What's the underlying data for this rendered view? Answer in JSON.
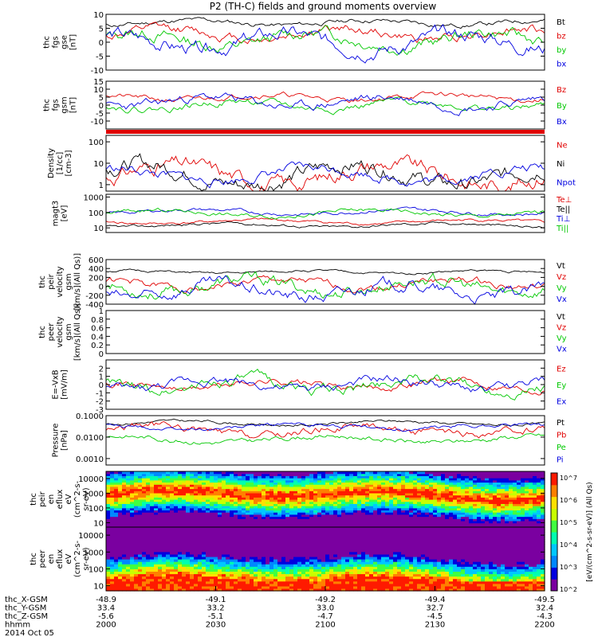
{
  "title": "P2 (TH-C) fields and ground moments overview",
  "colors": {
    "black": "#000000",
    "red": "#e00000",
    "green": "#00c800",
    "blue": "#0000e0",
    "cmap": [
      "#7a00a0",
      "#0000e0",
      "#0088ff",
      "#00c8ff",
      "#00ffb0",
      "#40ff40",
      "#c8ff00",
      "#ffe000",
      "#ff8000",
      "#ff1a00"
    ]
  },
  "chart_data": [
    {
      "type": "line",
      "name": "thc_fgs_gse",
      "ylabel": [
        "thc",
        "fgs",
        "gse",
        "[nT]"
      ],
      "ylim": [
        -10,
        10
      ],
      "yticks": [
        10,
        5,
        0,
        -5,
        -10
      ],
      "series": [
        {
          "name": "Bt",
          "color": "black",
          "base": 7,
          "amp": 1.5,
          "seed": 11
        },
        {
          "name": "bz",
          "color": "red",
          "base": 3,
          "amp": 3,
          "seed": 12
        },
        {
          "name": "by",
          "color": "green",
          "base": 1,
          "amp": 4,
          "seed": 13
        },
        {
          "name": "bx",
          "color": "blue",
          "base": 0,
          "amp": 4.5,
          "seed": 14
        }
      ]
    },
    {
      "type": "line",
      "name": "thc_fgs_gsm",
      "ylabel": [
        "thc",
        "fgs",
        "gsm",
        "[nT]"
      ],
      "ylim": [
        -15,
        15
      ],
      "yticks": [
        15,
        10,
        5,
        0,
        -5,
        -10
      ],
      "series": [
        {
          "name": "Bz",
          "color": "red",
          "base": 5,
          "amp": 3,
          "seed": 21
        },
        {
          "name": "By",
          "color": "green",
          "base": 0,
          "amp": 4,
          "seed": 22
        },
        {
          "name": "Bx",
          "color": "blue",
          "base": 2,
          "amp": 5,
          "seed": 23
        }
      ]
    },
    {
      "type": "line",
      "name": "density",
      "ylabel": [
        "Density",
        "[1/cc]",
        "[cm-3]"
      ],
      "ylim": [
        0.5,
        200
      ],
      "log": true,
      "yticks": [
        100,
        10,
        1
      ],
      "series": [
        {
          "name": "Ne",
          "color": "red",
          "base": 3,
          "amp": 0.8,
          "seed": 31
        },
        {
          "name": "Ni",
          "color": "black",
          "base": 3,
          "amp": 0.8,
          "seed": 32
        },
        {
          "name": "Npot",
          "color": "blue",
          "base": 3,
          "amp": 0.5,
          "seed": 33
        }
      ]
    },
    {
      "type": "line",
      "name": "temperature",
      "ylabel": [
        "magt3",
        "[eV]"
      ],
      "ylim": [
        5,
        1500
      ],
      "log": true,
      "yticks": [
        1000,
        100,
        10
      ],
      "series": [
        {
          "name": "Te⊥",
          "color": "red",
          "base": 25,
          "amp": 0.2,
          "seed": 41
        },
        {
          "name": "Te||",
          "color": "black",
          "base": 15,
          "amp": 0.2,
          "seed": 42
        },
        {
          "name": "Ti⊥",
          "color": "blue",
          "base": 110,
          "amp": 0.25,
          "seed": 43
        },
        {
          "name": "Ti||",
          "color": "green",
          "base": 90,
          "amp": 0.3,
          "seed": 44
        }
      ]
    },
    {
      "type": "line",
      "name": "thc_peir_velocity",
      "ylabel": [
        "thc",
        "peir",
        "velocity",
        "gsm",
        "[km/s](All Qs)]"
      ],
      "ylim": [
        -400,
        600
      ],
      "yticks": [
        600,
        400,
        200,
        0,
        -200,
        -400
      ],
      "series": [
        {
          "name": "Vt",
          "color": "black",
          "base": 320,
          "amp": 50,
          "seed": 51
        },
        {
          "name": "Vz",
          "color": "red",
          "base": 50,
          "amp": 150,
          "seed": 52
        },
        {
          "name": "Vy",
          "color": "green",
          "base": 0,
          "amp": 250,
          "seed": 53
        },
        {
          "name": "Vx",
          "color": "blue",
          "base": -100,
          "amp": 250,
          "seed": 54
        }
      ]
    },
    {
      "type": "line",
      "name": "thc_peer_velocity",
      "ylabel": [
        "thc",
        "peer",
        "velocity",
        "gsm",
        "[km/s](All Qs)]"
      ],
      "ylim": [
        0,
        1.0
      ],
      "yticks": [
        1.0,
        0.8,
        0.6,
        0.4,
        0.2,
        0.0
      ],
      "series": [
        {
          "name": "Vt",
          "color": "black",
          "empty": true
        },
        {
          "name": "Vz",
          "color": "red",
          "empty": true
        },
        {
          "name": "Vy",
          "color": "green",
          "empty": true
        },
        {
          "name": "Vx",
          "color": "blue",
          "empty": true
        }
      ]
    },
    {
      "type": "line",
      "name": "e_field",
      "ylabel": [
        "E=-VxB",
        "[mV/m]"
      ],
      "ylim": [
        -3,
        3
      ],
      "yticks": [
        2,
        1,
        0,
        -1,
        -2,
        -3
      ],
      "series": [
        {
          "name": "Ez",
          "color": "red",
          "base": 0,
          "amp": 0.8,
          "seed": 71
        },
        {
          "name": "Ey",
          "color": "green",
          "base": 0,
          "amp": 1.2,
          "seed": 72
        },
        {
          "name": "Ex",
          "color": "blue",
          "base": 0,
          "amp": 1.0,
          "seed": 73
        }
      ]
    },
    {
      "type": "line",
      "name": "pressure",
      "ylabel": [
        "Pressure",
        "[nPa]"
      ],
      "ylim": [
        0.0005,
        0.1
      ],
      "log": true,
      "yticks": [
        0.1,
        0.01,
        0.001
      ],
      "ytick_labels": [
        "0.1000",
        "0.0100",
        "0.0010"
      ],
      "series": [
        {
          "name": "Pt",
          "color": "black",
          "base": 0.045,
          "amp": 0.15,
          "seed": 81
        },
        {
          "name": "Pb",
          "color": "red",
          "base": 0.02,
          "amp": 0.4,
          "seed": 82
        },
        {
          "name": "Pe",
          "color": "green",
          "base": 0.008,
          "amp": 0.25,
          "seed": 83
        },
        {
          "name": "Pi",
          "color": "blue",
          "base": 0.03,
          "amp": 0.2,
          "seed": 84
        }
      ]
    },
    {
      "type": "heatmap",
      "name": "thc_peir_en_eflux",
      "ylabel": [
        "thc",
        "peir",
        "en",
        "eflux",
        "eV",
        "(cm^2-s-",
        "sr-eV)"
      ],
      "ylim": [
        5,
        30000
      ],
      "log": true,
      "yticks": [
        10000,
        1000,
        100,
        10
      ],
      "ytick_labels": [
        "10000",
        "1000",
        "100",
        "10"
      ],
      "peak_energy": 800,
      "seed": 91
    },
    {
      "type": "heatmap",
      "name": "thc_peer_en_eflux",
      "ylabel": [
        "thc",
        "peer",
        "en",
        "eflux",
        "eV",
        "(cm^2-s-",
        "sr-eV)"
      ],
      "ylim": [
        5,
        30000
      ],
      "log": true,
      "yticks": [
        10000,
        1000,
        100,
        10
      ],
      "ytick_labels": [
        "10000",
        "1000",
        "100",
        "10"
      ],
      "peak_energy": 15,
      "seed": 92
    }
  ],
  "colorbar": {
    "label": "[eV/(cm^2-s-sr-eV)]",
    "label2": "(All Qs)",
    "ticks": [
      "10^7",
      "10^6",
      "10^5",
      "10^4",
      "10^3",
      "10^2"
    ]
  },
  "xaxis": {
    "rows": [
      {
        "name": "thc_X-GSM",
        "values": [
          "-48.9",
          "-49.1",
          "-49.2",
          "-49.4",
          "-49.5"
        ]
      },
      {
        "name": "thc_Y-GSM",
        "values": [
          "33.4",
          "33.2",
          "33.0",
          "32.7",
          "32.4"
        ]
      },
      {
        "name": "thc_Z-GSM",
        "values": [
          "-5.6",
          "-5.1",
          "-4.7",
          "-4.5",
          "-4.3"
        ]
      },
      {
        "name": "hhmm",
        "values": [
          "2000",
          "2030",
          "2100",
          "2130",
          "2200"
        ]
      }
    ],
    "date": "2014 Oct 05"
  }
}
